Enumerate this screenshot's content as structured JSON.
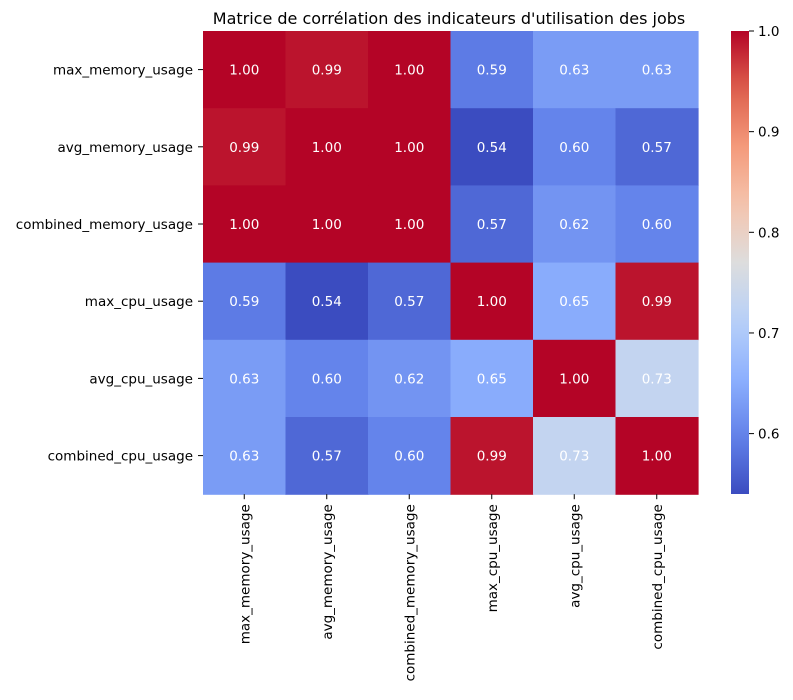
{
  "chart_data": {
    "type": "heatmap",
    "title": "Matrice de corrélation des indicateurs d'utilisation des jobs",
    "row_labels": [
      "max_memory_usage",
      "avg_memory_usage",
      "combined_memory_usage",
      "max_cpu_usage",
      "avg_cpu_usage",
      "combined_cpu_usage"
    ],
    "col_labels": [
      "max_memory_usage",
      "avg_memory_usage",
      "combined_memory_usage",
      "max_cpu_usage",
      "avg_cpu_usage",
      "combined_cpu_usage"
    ],
    "values": [
      [
        1.0,
        0.99,
        1.0,
        0.59,
        0.63,
        0.63
      ],
      [
        0.99,
        1.0,
        1.0,
        0.54,
        0.6,
        0.57
      ],
      [
        1.0,
        1.0,
        1.0,
        0.57,
        0.62,
        0.6
      ],
      [
        0.59,
        0.54,
        0.57,
        1.0,
        0.65,
        0.99
      ],
      [
        0.63,
        0.6,
        0.62,
        0.65,
        1.0,
        0.73
      ],
      [
        0.63,
        0.57,
        0.6,
        0.99,
        0.73,
        1.0
      ]
    ],
    "value_format": "0.00",
    "colormap": "coolwarm",
    "color_range": [
      0.54,
      1.0
    ],
    "colorbar": {
      "ticks": [
        0.6,
        0.7,
        0.8,
        0.9,
        1.0
      ],
      "tick_labels": [
        "0.6",
        "0.7",
        "0.8",
        "0.9",
        "1.0"
      ],
      "placement": "right"
    },
    "annotation_colors": {
      "text": "#ffffff"
    },
    "x_tick_rotation": "vertical",
    "grid": false
  }
}
